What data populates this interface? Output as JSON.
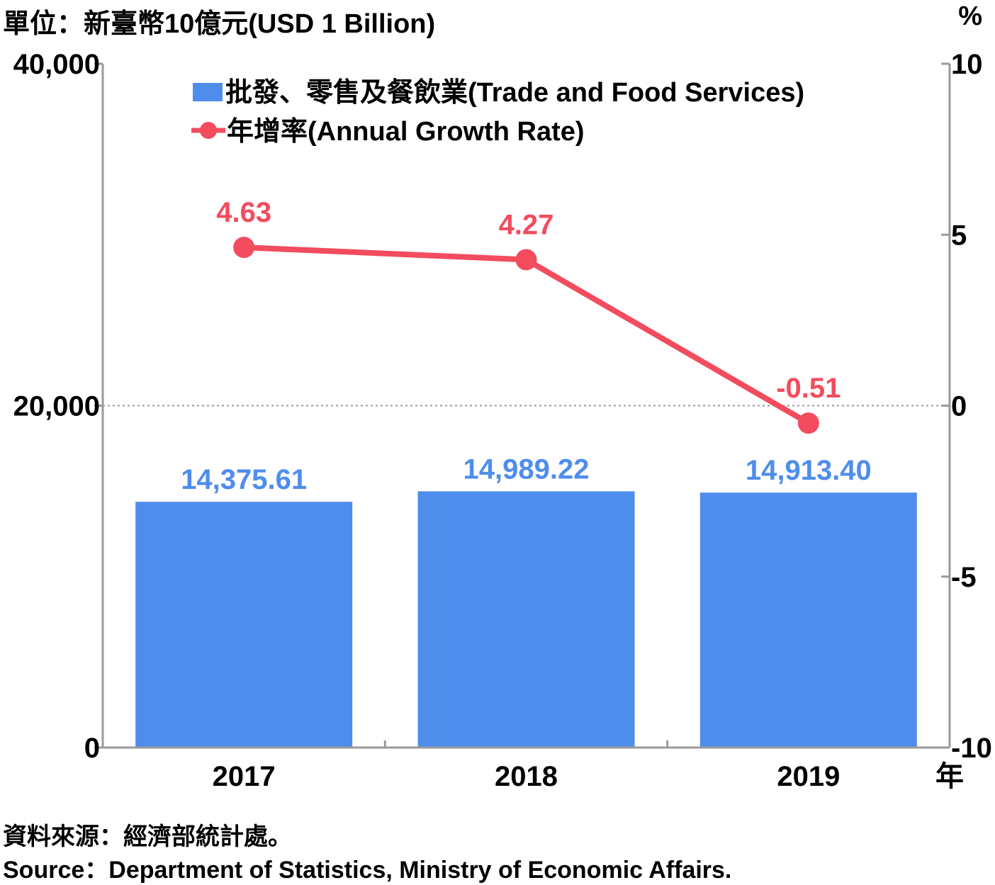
{
  "header": {
    "unit_left": "單位：新臺幣10億元(USD 1 Billion)",
    "unit_right": "%"
  },
  "footer": {
    "source_zh": "資料來源：經濟部統計處。",
    "source_en": "Source：Department of Statistics, Ministry of Economic Affairs."
  },
  "colors": {
    "bar": "#4f8ded",
    "line": "#f24c5e",
    "axis": "#9a9a9a",
    "text": "#000000"
  },
  "chart_data": {
    "type": "bar",
    "categories": [
      "2017",
      "2018",
      "2019"
    ],
    "x_unit": "年",
    "series": [
      {
        "name": "批發、零售及餐飲業(Trade and Food Services)",
        "type": "bar",
        "axis": "left",
        "values": [
          14375.61,
          14989.22,
          14913.4
        ],
        "labels": [
          "14,375.61",
          "14,989.22",
          "14,913.40"
        ]
      },
      {
        "name": "年增率(Annual Growth Rate)",
        "type": "line",
        "axis": "right",
        "values": [
          4.63,
          4.27,
          -0.51
        ],
        "labels": [
          "4.63",
          "4.27",
          "-0.51"
        ]
      }
    ],
    "y_left": {
      "lim": [
        0,
        40000
      ],
      "ticks": [
        0,
        20000,
        40000
      ],
      "tick_labels": [
        "0",
        "20,000",
        "40,000"
      ]
    },
    "y_right": {
      "lim": [
        -10,
        10
      ],
      "ticks": [
        -10,
        -5,
        0,
        5,
        10
      ],
      "tick_labels": [
        "-10",
        "-5",
        "0",
        "5",
        "10"
      ],
      "zero_line": "dotted"
    },
    "legend_position": "top"
  }
}
